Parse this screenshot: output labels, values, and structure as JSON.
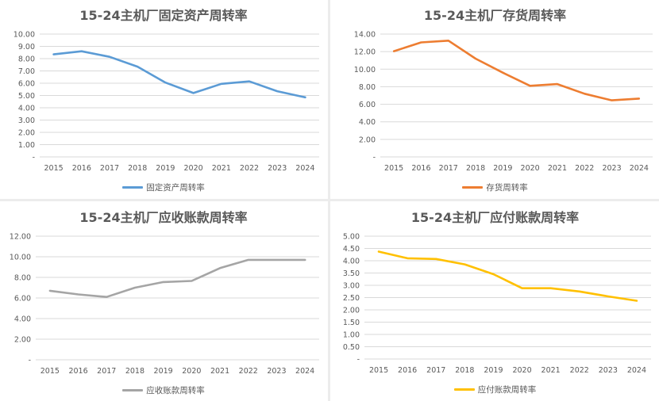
{
  "chart_data": [
    {
      "type": "line",
      "title": "15-24主机厂固定资产周转率",
      "categories": [
        "2015",
        "2016",
        "2017",
        "2018",
        "2019",
        "2020",
        "2021",
        "2022",
        "2023",
        "2024"
      ],
      "series": [
        {
          "name": "固定资产周转率",
          "values": [
            8.35,
            8.6,
            8.15,
            7.35,
            6.05,
            5.2,
            5.95,
            6.15,
            5.35,
            4.85
          ],
          "color": "#5b9bd5"
        }
      ],
      "ylim": [
        0,
        10
      ],
      "yticks": [
        "-",
        "1.00",
        "2.00",
        "3.00",
        "4.00",
        "5.00",
        "6.00",
        "7.00",
        "8.00",
        "9.00",
        "10.00"
      ],
      "legend": "bottom",
      "grid": true
    },
    {
      "type": "line",
      "title": "15-24主机厂存货周转率",
      "categories": [
        "2015",
        "2016",
        "2017",
        "2018",
        "2019",
        "2020",
        "2021",
        "2022",
        "2023",
        "2024"
      ],
      "series": [
        {
          "name": "存货周转率",
          "values": [
            12.05,
            13.05,
            13.25,
            11.2,
            9.6,
            8.1,
            8.3,
            7.2,
            6.45,
            6.65
          ],
          "color": "#ed7d31"
        }
      ],
      "ylim": [
        0,
        14
      ],
      "yticks": [
        "-",
        "2.00",
        "4.00",
        "6.00",
        "8.00",
        "10.00",
        "12.00",
        "14.00"
      ],
      "legend": "bottom",
      "grid": true
    },
    {
      "type": "line",
      "title": "15-24主机厂应收账款周转率",
      "categories": [
        "2015",
        "2016",
        "2017",
        "2018",
        "2019",
        "2020",
        "2021",
        "2022",
        "2023",
        "2024"
      ],
      "series": [
        {
          "name": "应收账款周转率",
          "values": [
            6.7,
            6.35,
            6.1,
            7.0,
            7.55,
            7.65,
            8.9,
            9.7,
            9.7,
            9.7
          ],
          "color": "#a5a5a5"
        }
      ],
      "ylim": [
        0,
        12
      ],
      "yticks": [
        "-",
        "2.00",
        "4.00",
        "6.00",
        "8.00",
        "10.00",
        "12.00"
      ],
      "legend": "bottom",
      "grid": true
    },
    {
      "type": "line",
      "title": "15-24主机厂应付账款周转率",
      "categories": [
        "2015",
        "2016",
        "2017",
        "2018",
        "2019",
        "2020",
        "2021",
        "2022",
        "2023",
        "2024"
      ],
      "series": [
        {
          "name": "应付账款周转率",
          "values": [
            4.37,
            4.1,
            4.07,
            3.85,
            3.45,
            2.88,
            2.88,
            2.75,
            2.55,
            2.37
          ],
          "color": "#ffc000"
        }
      ],
      "ylim": [
        0,
        5
      ],
      "yticks": [
        "-",
        "0.50",
        "1.00",
        "1.50",
        "2.00",
        "2.50",
        "3.00",
        "3.50",
        "4.00",
        "4.50",
        "5.00"
      ],
      "legend": "bottom",
      "grid": true
    }
  ]
}
